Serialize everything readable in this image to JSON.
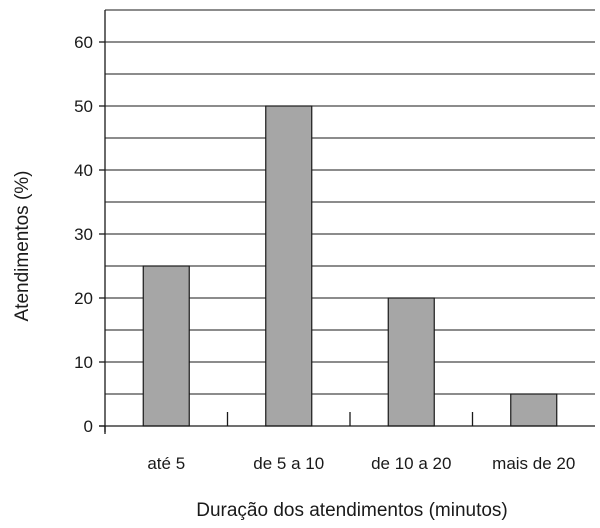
{
  "chart_data": {
    "type": "bar",
    "categories": [
      "até 5",
      "de 5 a 10",
      "de 10 a 20",
      "mais de 20"
    ],
    "values": [
      25,
      50,
      20,
      5
    ],
    "xlabel": "Duração dos atendimentos (minutos)",
    "ylabel": "Atendimentos (%)",
    "ylim": [
      0,
      60
    ],
    "yticks": [
      0,
      10,
      20,
      30,
      40,
      50,
      60
    ],
    "grid": "horizontal lines every 5 units",
    "legend": "none",
    "bar_color": "#a6a6a6"
  }
}
